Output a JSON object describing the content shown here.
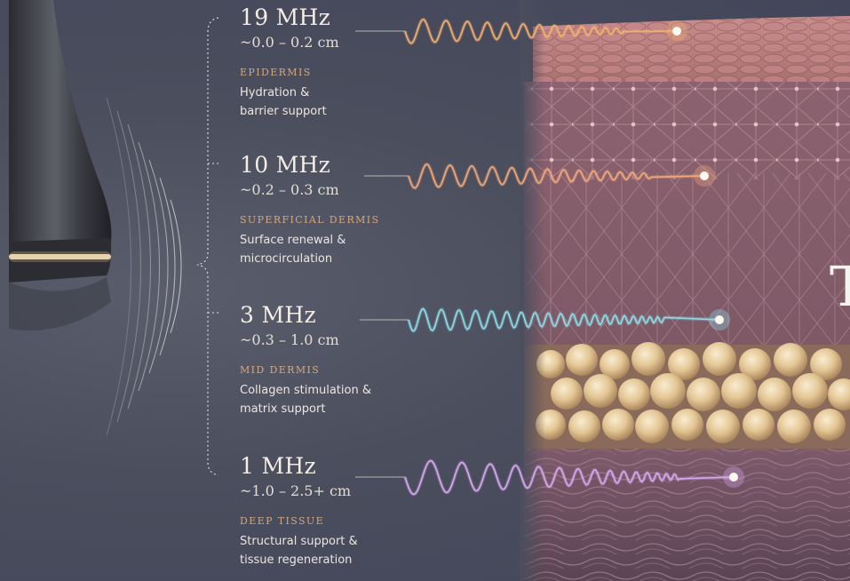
{
  "bands": [
    {
      "freq": "19 MHz",
      "depth": "~0.0 – 0.2 cm",
      "layer": "EPIDERMIS",
      "desc": [
        "Hydration &",
        "barrier support"
      ],
      "color": "#f2b070"
    },
    {
      "freq": "10 MHz",
      "depth": "~0.2 – 0.3 cm",
      "layer": "SUPERFICIAL DERMIS",
      "desc": [
        "Surface renewal &",
        "microcirculation"
      ],
      "color": "#f2a87a"
    },
    {
      "freq": "3 MHz",
      "depth": "~0.3 – 1.0 cm",
      "layer": "MID DERMIS",
      "desc": [
        "Collagen stimulation &",
        "matrix support"
      ],
      "color": "#8fdce8"
    },
    {
      "freq": "1 MHz",
      "depth": "~1.0 – 2.5+ cm",
      "layer": "DEEP TISSUE",
      "desc": [
        "Structural support &",
        "tissue regeneration"
      ],
      "color": "#d8a8f0"
    }
  ],
  "cut_letter": "T"
}
